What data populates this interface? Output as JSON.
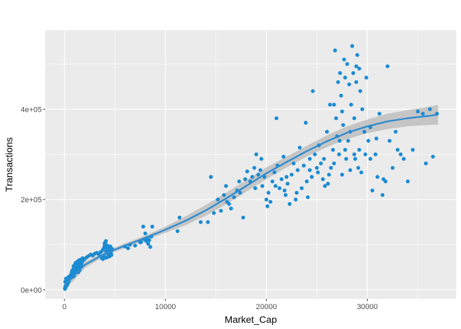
{
  "chart_data": {
    "type": "scatter",
    "xlabel": "Market_Cap",
    "ylabel": "Transactions",
    "xlim": [
      -1900,
      38800
    ],
    "ylim": [
      -20000,
      575000
    ],
    "x_ticks": [
      0,
      10000,
      20000,
      30000
    ],
    "x_tick_labels": [
      "0",
      "10000",
      "20000",
      "30000"
    ],
    "y_ticks": [
      0,
      200000,
      400000
    ],
    "y_tick_labels": [
      "0e+00",
      "2e+05",
      "4e+05"
    ],
    "grid": true,
    "legend": "none",
    "colors": {
      "panel_background": "#EBEBEB",
      "grid_major": "#FFFFFF",
      "points": "#1B8BD2",
      "smooth_line": "#2E8BCF",
      "confidence_band": "#BEBEBE"
    },
    "series": [
      {
        "type": "scatter",
        "points": [
          [
            50,
            2000
          ],
          [
            120,
            5000
          ],
          [
            180,
            9000
          ],
          [
            250,
            14000
          ],
          [
            80,
            18000
          ],
          [
            300,
            22000
          ],
          [
            150,
            25000
          ],
          [
            400,
            28000
          ],
          [
            60,
            3500
          ],
          [
            200,
            12000
          ],
          [
            350,
            16000
          ],
          [
            450,
            20000
          ],
          [
            500,
            30000
          ],
          [
            100,
            8000
          ],
          [
            280,
            11000
          ],
          [
            600,
            26000
          ],
          [
            650,
            33000
          ],
          [
            700,
            38000
          ],
          [
            750,
            42000
          ],
          [
            800,
            35000
          ],
          [
            850,
            45000
          ],
          [
            900,
            52000
          ],
          [
            950,
            48000
          ],
          [
            1000,
            55000
          ],
          [
            1050,
            40000
          ],
          [
            1100,
            60000
          ],
          [
            1150,
            50000
          ],
          [
            1200,
            58000
          ],
          [
            1250,
            44000
          ],
          [
            1300,
            62000
          ],
          [
            1350,
            53000
          ],
          [
            1400,
            65000
          ],
          [
            1450,
            57000
          ],
          [
            1500,
            49000
          ],
          [
            1550,
            61000
          ],
          [
            1600,
            67000
          ],
          [
            1650,
            54000
          ],
          [
            1700,
            59000
          ],
          [
            1750,
            63000
          ],
          [
            1800,
            70000
          ],
          [
            720,
            28000
          ],
          [
            780,
            31000
          ],
          [
            860,
            36000
          ],
          [
            920,
            30000
          ],
          [
            980,
            34000
          ],
          [
            1080,
            38000
          ],
          [
            1180,
            41000
          ],
          [
            1280,
            46000
          ],
          [
            1380,
            39000
          ],
          [
            1480,
            43000
          ],
          [
            1900,
            66000
          ],
          [
            2000,
            68000
          ],
          [
            2200,
            72000
          ],
          [
            2400,
            75000
          ],
          [
            2600,
            78000
          ],
          [
            2800,
            76000
          ],
          [
            3000,
            80000
          ],
          [
            3200,
            82000
          ],
          [
            3400,
            79000
          ],
          [
            3600,
            84000
          ],
          [
            3700,
            70000
          ],
          [
            3800,
            88000
          ],
          [
            3850,
            90000
          ],
          [
            3900,
            76000
          ],
          [
            3950,
            95000
          ],
          [
            4000,
            100000
          ],
          [
            4050,
            105000
          ],
          [
            4100,
            108000
          ],
          [
            4150,
            85000
          ],
          [
            4200,
            92000
          ],
          [
            4250,
            98000
          ],
          [
            4300,
            80000
          ],
          [
            4350,
            87000
          ],
          [
            4400,
            93000
          ],
          [
            4450,
            74000
          ],
          [
            4500,
            89000
          ],
          [
            4550,
            96000
          ],
          [
            4600,
            83000
          ],
          [
            4650,
            77000
          ],
          [
            4700,
            91000
          ],
          [
            3750,
            72000
          ],
          [
            3820,
            68000
          ],
          [
            4120,
            71000
          ],
          [
            4320,
            73000
          ],
          [
            4480,
            78000
          ],
          [
            4580,
            86000
          ],
          [
            4620,
            79000
          ],
          [
            4120,
            99000
          ],
          [
            3980,
            103000
          ],
          [
            4060,
            94000
          ],
          [
            6000,
            96000
          ],
          [
            6500,
            100000
          ],
          [
            7000,
            98000
          ],
          [
            7500,
            105000
          ],
          [
            7900,
            112000
          ],
          [
            8100,
            108000
          ],
          [
            8200,
            115000
          ],
          [
            8300,
            102000
          ],
          [
            8400,
            110000
          ],
          [
            8600,
            118000
          ],
          [
            8000,
            125000
          ],
          [
            7800,
            140000
          ],
          [
            8700,
            140000
          ],
          [
            8500,
            95000
          ],
          [
            7600,
            106000
          ],
          [
            6300,
            92000
          ],
          [
            11200,
            130000
          ],
          [
            11400,
            160000
          ],
          [
            13500,
            150000
          ],
          [
            14200,
            150000
          ],
          [
            14500,
            250000
          ],
          [
            14800,
            170000
          ],
          [
            15200,
            200000
          ],
          [
            15500,
            175000
          ],
          [
            15800,
            210000
          ],
          [
            16000,
            230000
          ],
          [
            16300,
            190000
          ],
          [
            16500,
            180000
          ],
          [
            16800,
            205000
          ],
          [
            17100,
            220000
          ],
          [
            17400,
            215000
          ],
          [
            17700,
            160000
          ],
          [
            17900,
            245000
          ],
          [
            18100,
            262000
          ],
          [
            18400,
            240000
          ],
          [
            18600,
            250000
          ],
          [
            18800,
            270000
          ],
          [
            19000,
            300000
          ],
          [
            19200,
            255000
          ],
          [
            19400,
            265000
          ],
          [
            19600,
            230000
          ],
          [
            19800,
            250000
          ],
          [
            20000,
            200000
          ],
          [
            20100,
            185000
          ],
          [
            20200,
            215000
          ],
          [
            20400,
            195000
          ],
          [
            20600,
            240000
          ],
          [
            20800,
            260000
          ],
          [
            21000,
            380000
          ],
          [
            21100,
            275000
          ],
          [
            21300,
            225000
          ],
          [
            21500,
            245000
          ],
          [
            21700,
            295000
          ],
          [
            21900,
            210000
          ],
          [
            22100,
            235000
          ],
          [
            22300,
            190000
          ],
          [
            22500,
            255000
          ],
          [
            22700,
            280000
          ],
          [
            22900,
            200000
          ],
          [
            23100,
            265000
          ],
          [
            23300,
            315000
          ],
          [
            23500,
            225000
          ],
          [
            23700,
            275000
          ],
          [
            23900,
            370000
          ],
          [
            24100,
            205000
          ],
          [
            24300,
            290000
          ],
          [
            24500,
            250000
          ],
          [
            24600,
            440000
          ],
          [
            24800,
            300000
          ],
          [
            25000,
            270000
          ],
          [
            25200,
            320000
          ],
          [
            25400,
            280000
          ],
          [
            25600,
            245000
          ],
          [
            25800,
            230000
          ],
          [
            26000,
            350000
          ],
          [
            26200,
            255000
          ],
          [
            26400,
            270000
          ],
          [
            26600,
            310000
          ],
          [
            26700,
            410000
          ],
          [
            26800,
            530000
          ],
          [
            26900,
            380000
          ],
          [
            27000,
            340000
          ],
          [
            27100,
            460000
          ],
          [
            27200,
            300000
          ],
          [
            27300,
            480000
          ],
          [
            27400,
            430000
          ],
          [
            27500,
            395000
          ],
          [
            27600,
            365000
          ],
          [
            27700,
            510000
          ],
          [
            27800,
            470000
          ],
          [
            27900,
            290000
          ],
          [
            28000,
            500000
          ],
          [
            28100,
            330000
          ],
          [
            28200,
            455000
          ],
          [
            28300,
            350000
          ],
          [
            28400,
            410000
          ],
          [
            28500,
            540000
          ],
          [
            28600,
            480000
          ],
          [
            28700,
            380000
          ],
          [
            28800,
            290000
          ],
          [
            28900,
            460000
          ],
          [
            29000,
            520000
          ],
          [
            29100,
            270000
          ],
          [
            29200,
            310000
          ],
          [
            29300,
            440000
          ],
          [
            29400,
            260000
          ],
          [
            29500,
            400000
          ],
          [
            29700,
            350000
          ],
          [
            29900,
            470000
          ],
          [
            30100,
            330000
          ],
          [
            30300,
            360000
          ],
          [
            30500,
            220000
          ],
          [
            30800,
            300000
          ],
          [
            31000,
            250000
          ],
          [
            31200,
            390000
          ],
          [
            31500,
            210000
          ],
          [
            31800,
            240000
          ],
          [
            32000,
            495000
          ],
          [
            32200,
            330000
          ],
          [
            32500,
            270000
          ],
          [
            32800,
            350000
          ],
          [
            33000,
            310000
          ],
          [
            33300,
            300000
          ],
          [
            33600,
            290000
          ],
          [
            34000,
            240000
          ],
          [
            34500,
            310000
          ],
          [
            35000,
            395000
          ],
          [
            35500,
            390000
          ],
          [
            35800,
            280000
          ],
          [
            36200,
            400000
          ],
          [
            36500,
            295000
          ],
          [
            36900,
            390000
          ],
          [
            27500,
            255000
          ],
          [
            26300,
            410000
          ],
          [
            28300,
            265000
          ],
          [
            29200,
            490000
          ],
          [
            25100,
            260000
          ],
          [
            24000,
            240000
          ],
          [
            26100,
            235000
          ],
          [
            27800,
            310000
          ],
          [
            28700,
            300000
          ],
          [
            30300,
            290000
          ],
          [
            31600,
            245000
          ],
          [
            23000,
            215000
          ],
          [
            22000,
            250000
          ],
          [
            20900,
            230000
          ],
          [
            19500,
            290000
          ],
          [
            21800,
            220000
          ],
          [
            29800,
            300000
          ],
          [
            30900,
            335000
          ],
          [
            26700,
            280000
          ],
          [
            28900,
            495000
          ],
          [
            27250,
            330000
          ],
          [
            25700,
            290000
          ],
          [
            24300,
            265000
          ],
          [
            18900,
            225000
          ],
          [
            17300,
            240000
          ],
          [
            16100,
            195000
          ]
        ]
      },
      {
        "type": "smooth",
        "x": [
          0,
          2000,
          4000,
          6000,
          8000,
          10000,
          12000,
          14000,
          16000,
          18000,
          20000,
          22000,
          24000,
          26000,
          28000,
          30000,
          32000,
          34000,
          36000,
          37000
        ],
        "y": [
          10000,
          55000,
          80000,
          98000,
          115000,
          133000,
          153000,
          176000,
          202000,
          230000,
          258000,
          283000,
          307000,
          329000,
          348000,
          362000,
          373000,
          380000,
          385000,
          388000
        ],
        "band_lower": [
          -2000,
          48000,
          75000,
          93000,
          110000,
          126000,
          143000,
          164000,
          189000,
          217000,
          245000,
          271000,
          295000,
          316000,
          334000,
          347000,
          356000,
          362000,
          365000,
          366000
        ],
        "band_upper": [
          22000,
          62000,
          85000,
          103000,
          120000,
          140000,
          163000,
          188000,
          215000,
          243000,
          271000,
          295000,
          319000,
          342000,
          362000,
          377000,
          390000,
          398000,
          405000,
          410000
        ]
      }
    ]
  }
}
